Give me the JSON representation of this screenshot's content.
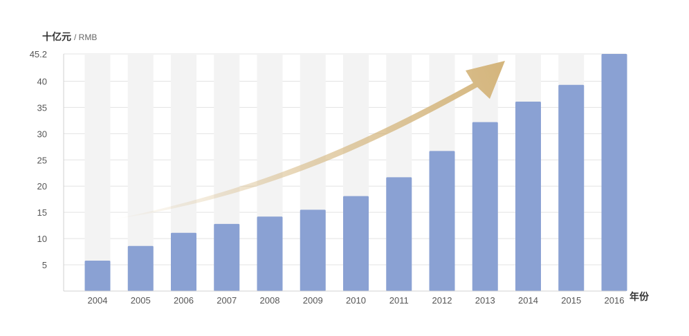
{
  "chart_data": {
    "type": "bar",
    "ylabel_main": "十亿元",
    "ylabel_unit": "/ RMB",
    "xlabel": "年份",
    "categories": [
      "2004",
      "2005",
      "2006",
      "2007",
      "2008",
      "2009",
      "2010",
      "2011",
      "2012",
      "2013",
      "2014",
      "2015",
      "2016"
    ],
    "values": [
      5.8,
      8.6,
      11.1,
      12.8,
      14.2,
      15.5,
      18.1,
      21.7,
      26.7,
      32.2,
      36.1,
      39.3,
      45.2
    ],
    "ylim": [
      0,
      45.2
    ],
    "yticks": [
      5,
      10,
      15,
      20,
      25,
      30,
      35,
      40,
      45.2
    ],
    "ytick_labels": [
      "5",
      "10",
      "15",
      "20",
      "25",
      "30",
      "35",
      "40",
      "45.2"
    ],
    "grid": true,
    "colors": {
      "bar": "#8aa1d3",
      "bar_track": "#f3f3f3",
      "arrow": "#d4b57c",
      "grid": "#e3e3e3",
      "text": "#555555"
    }
  }
}
